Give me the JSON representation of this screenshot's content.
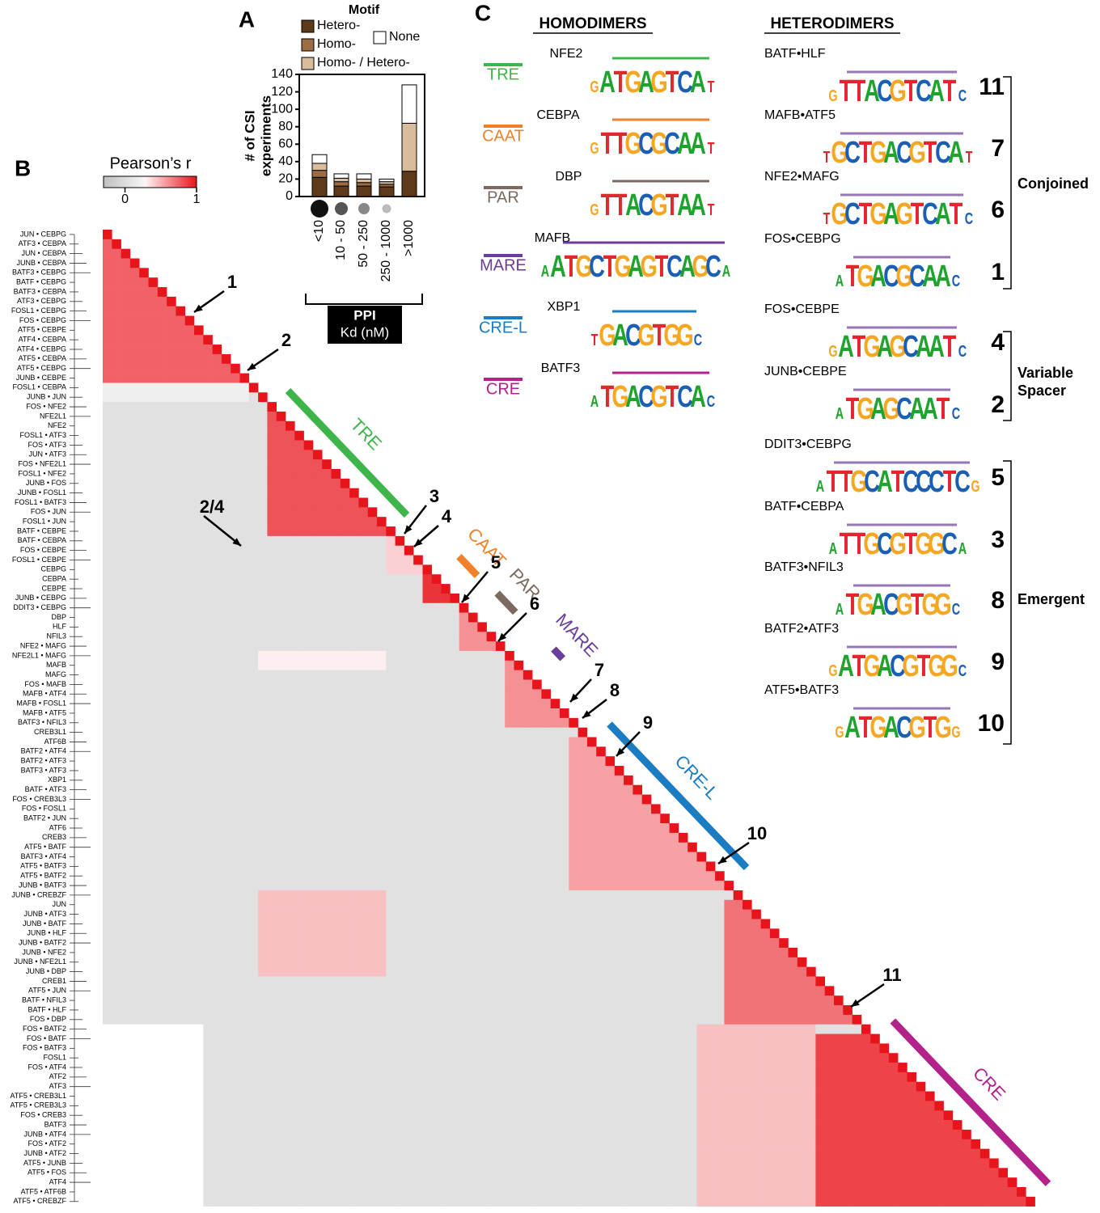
{
  "panels": {
    "a": "A",
    "b": "B",
    "c": "C"
  },
  "chart_data": [
    {
      "type": "bar",
      "stacked": true,
      "legend_title": "Motif",
      "ylabel": [
        "# of CSI",
        "experiments"
      ],
      "xlabel": [
        "PPI",
        "Kd (nM)"
      ],
      "categories": [
        "<10",
        "10 - 50",
        "50 - 250",
        "250 - 1000",
        ">1000"
      ],
      "series": [
        {
          "name": "Hetero-",
          "color": "#5c3a1a",
          "values": [
            22,
            12,
            12,
            11,
            29
          ]
        },
        {
          "name": "Homo-",
          "color": "#9c6c44",
          "values": [
            8,
            5,
            4,
            3,
            0
          ]
        },
        {
          "name": "Homo- / Hetero-",
          "color": "#d9bc9b",
          "values": [
            8,
            4,
            4,
            3,
            55
          ]
        },
        {
          "name": "None",
          "color": "#ffffff",
          "values": [
            10,
            5,
            6,
            3,
            44
          ]
        }
      ],
      "ylim": [
        0,
        140
      ],
      "yticks": [
        0,
        20,
        40,
        60,
        80,
        100,
        120,
        140
      ]
    },
    {
      "type": "heatmap",
      "title": "Pearson’s r",
      "colorbar_lim": [
        -0.3,
        1
      ],
      "colorbar_ticks": [
        0,
        1
      ],
      "rows": [
        "JUN • CEBPG",
        "ATF3 • CEBPA",
        "JUN • CEBPA",
        "JUNB • CEBPA",
        "BATF3 • CEBPG",
        "BATF • CEBPG",
        "BATF3 • CEBPA",
        "ATF3 • CEBPG",
        "FOSL1 • CEBPG",
        "FOS • CEBPG",
        "ATF5 • CEBPE",
        "ATF4 • CEBPA",
        "ATF4 • CEBPG",
        "ATF5 • CEBPA",
        "ATF5 • CEBPG",
        "JUNB • CEBPE",
        "FOSL1 • CEBPA",
        "JUNB • JUN",
        "FOS • NFE2",
        "NFE2L1",
        "NFE2",
        "FOSL1 • ATF3",
        "FOS • ATF3",
        "JUN • ATF3",
        "FOS • NFE2L1",
        "FOSL1 • NFE2",
        "JUNB • FOS",
        "JUNB • FOSL1",
        "FOSL1 • BATF3",
        "FOS • JUN",
        "FOSL1 • JUN",
        "BATF • CEBPE",
        "BATF • CEBPA",
        "FOS • CEBPE",
        "FOSL1 • CEBPE",
        "CEBPG",
        "CEBPA",
        "CEBPE",
        "JUNB • CEBPG",
        "DDIT3 • CEBPG",
        "DBP",
        "HLF",
        "NFIL3",
        "NFE2 • MAFG",
        "NFE2L1 • MAFG",
        "MAFB",
        "MAFG",
        "FOS • MAFB",
        "MAFB • ATF4",
        "MAFB • FOSL1",
        "MAFB • ATF5",
        "BATF3 • NFIL3",
        "CREB3L1",
        "ATF6B",
        "BATF2 • ATF4",
        "BATF2 • ATF3",
        "BATF3 • ATF3",
        "XBP1",
        "BATF • ATF3",
        "FOS • CREB3L3",
        "FOS • FOSL1",
        "BATF2 • JUN",
        "ATF6",
        "CREB3",
        "ATF5 • BATF",
        "BATF3 • ATF4",
        "ATF5 • BATF3",
        "ATF5 • BATF2",
        "JUNB • BATF3",
        "JUNB • CREBZF",
        "JUN",
        "JUNB • ATF3",
        "JUNB • BATF",
        "JUNB • HLF",
        "JUNB • BATF2",
        "JUNB • NFE2",
        "JUNB • NFE2L1",
        "JUNB • DBP",
        "CREB1",
        "ATF5 • JUN",
        "BATF • NFIL3",
        "BATF • HLF",
        "FOS • DBP",
        "FOS • BATF2",
        "FOS • BATF",
        "FOS • BATF3",
        "FOSL1",
        "FOS • ATF4",
        "ATF2",
        "ATF3",
        "ATF5 • CREB3L1",
        "ATF5 • CREB3L3",
        "FOS • CREB3",
        "BATF3",
        "JUNB • ATF4",
        "FOS • ATF2",
        "JUNB • ATF2",
        "ATF5 • JUNB",
        "ATF5 • FOS",
        "ATF4",
        "ATF5 • ATF6B",
        "ATF5 • CREBZF"
      ],
      "diagonal": 1,
      "background": 0.05,
      "blocks": [
        {
          "rows": [
            1,
            16
          ],
          "cols": [
            0,
            15
          ],
          "value": 0.75
        },
        {
          "rows": [
            16,
            17
          ],
          "cols": [
            0,
            15
          ],
          "value": 0.2
        },
        {
          "rows": [
            19,
            31
          ],
          "cols": [
            18,
            30
          ],
          "value": 0.8
        },
        {
          "rows": [
            32,
            35
          ],
          "cols": [
            31,
            34
          ],
          "value": 0.4
        },
        {
          "rows": [
            36,
            38
          ],
          "cols": [
            35,
            37
          ],
          "value": 0.9
        },
        {
          "rows": [
            40,
            43
          ],
          "cols": [
            39,
            42
          ],
          "value": 0.6
        },
        {
          "rows": [
            44,
            45
          ],
          "cols": [
            17,
            30
          ],
          "value": 0.3
        },
        {
          "rows": [
            45,
            51
          ],
          "cols": [
            44,
            50
          ],
          "value": 0.6
        },
        {
          "rows": [
            53,
            68
          ],
          "cols": [
            51,
            67
          ],
          "value": 0.55
        },
        {
          "rows": [
            69,
            77
          ],
          "cols": [
            17,
            30
          ],
          "value": 0.45
        },
        {
          "rows": [
            70,
            82
          ],
          "cols": [
            68,
            81
          ],
          "value": 0.7
        },
        {
          "rows": [
            83,
            101
          ],
          "cols": [
            0,
            10
          ],
          "value": 0.25
        },
        {
          "rows": [
            83,
            101
          ],
          "cols": [
            65,
            77
          ],
          "value": 0.45
        },
        {
          "rows": [
            84,
            101
          ],
          "cols": [
            78,
            100
          ],
          "value": 0.85
        }
      ],
      "clusters": [
        {
          "name": "TRE",
          "color": "#3db54a"
        },
        {
          "name": "CAAT",
          "color": "#f0812a"
        },
        {
          "name": "PAR",
          "color": "#7a6a5f"
        },
        {
          "name": "MARE",
          "color": "#6a3d9a"
        },
        {
          "name": "CRE-L",
          "color": "#1b7cc1"
        },
        {
          "name": "CRE",
          "color": "#b3228a"
        }
      ],
      "callouts": [
        "1",
        "2",
        "2/4",
        "3",
        "4",
        "5",
        "6",
        "7",
        "8",
        "9",
        "10",
        "11"
      ]
    }
  ],
  "motif_panel": {
    "homodimers_title": "HOMODIMERS",
    "heterodimers_title": "HETERODIMERS",
    "homodimers": [
      {
        "motif": "TRE",
        "color": "#3db54a",
        "name": "NFE2",
        "logo": "GATGAGTCAT"
      },
      {
        "motif": "CAAT",
        "color": "#f0812a",
        "name": "CEBPA",
        "logo": "GTTGCGCAAT"
      },
      {
        "motif": "PAR",
        "color": "#7a6a5f",
        "name": "DBP",
        "logo": "GTTACGTAAT"
      },
      {
        "motif": "MARE",
        "color": "#6a3d9a",
        "name": "MAFB",
        "logo": "AATGCTGAGTCAGCA"
      },
      {
        "motif": "CRE-L",
        "color": "#1b7cc1",
        "name": "XBP1",
        "logo": "TGACGTGGC"
      },
      {
        "motif": "CRE",
        "color": "#b3228a",
        "name": "BATF3",
        "logo": "ATGACGTCAC"
      }
    ],
    "heterodimers": [
      {
        "name": "BATF•HLF",
        "logo": "GTTACGTCATC",
        "number": "11"
      },
      {
        "name": "MAFB•ATF5",
        "logo": "TGCTGACGTCAT",
        "number": "7"
      },
      {
        "name": "NFE2•MAFG",
        "logo": "TGCTGAGTCATC",
        "number": "6"
      },
      {
        "name": "FOS•CEBPG",
        "logo": "ATGACGCAAC",
        "number": "1"
      },
      {
        "name": "FOS•CEBPE",
        "logo": "GATGAGCAATC",
        "number": "4"
      },
      {
        "name": "JUNB•CEBPE",
        "logo": "ATGAGCAATC",
        "number": "2"
      },
      {
        "name": "DDIT3•CEBPG",
        "logo": "ATTGCATCCCTCG",
        "number": "5"
      },
      {
        "name": "BATF•CEBPA",
        "logo": "ATTGCGTGGCA",
        "number": "3"
      },
      {
        "name": "BATF3•NFIL3",
        "logo": "ATGACGTGGC",
        "number": "8"
      },
      {
        "name": "BATF2•ATF3",
        "logo": "GATGACGTGGC",
        "number": "9"
      },
      {
        "name": "ATF5•BATF3",
        "logo": "GATGACGTGG",
        "number": "10"
      }
    ],
    "groups": [
      "Conjoined",
      [
        "Variable",
        "Spacer"
      ],
      "Emergent"
    ]
  }
}
